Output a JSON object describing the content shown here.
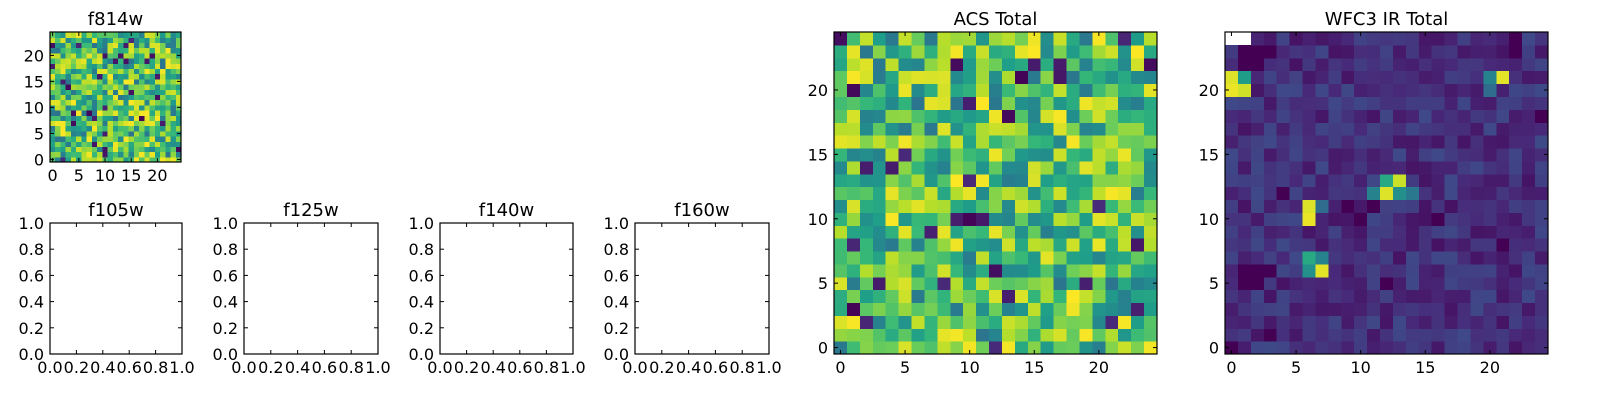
{
  "chart_data": [
    {
      "id": "f814w",
      "type": "heatmap",
      "title": "f814w",
      "grid_size": 25,
      "xlim": [
        -0.5,
        24.5
      ],
      "ylim": [
        -0.5,
        24.5
      ],
      "xticks": [
        0,
        5,
        10,
        15,
        20
      ],
      "yticks": [
        0,
        5,
        10,
        15,
        20
      ],
      "colormap": "viridis",
      "value_range": [
        0,
        1
      ],
      "seed": 814,
      "pattern": "noise"
    },
    {
      "id": "f105w",
      "type": "heatmap",
      "title": "f105w",
      "empty": true,
      "xlim": [
        0,
        1
      ],
      "ylim": [
        0,
        1
      ],
      "xticks": [
        "0.0",
        "0.2",
        "0.4",
        "0.6",
        "0.8",
        "1.0"
      ],
      "yticks": [
        "0.0",
        "0.2",
        "0.4",
        "0.6",
        "0.8",
        "1.0"
      ]
    },
    {
      "id": "f125w",
      "type": "heatmap",
      "title": "f125w",
      "empty": true,
      "xlim": [
        0,
        1
      ],
      "ylim": [
        0,
        1
      ],
      "xticks": [
        "0.0",
        "0.2",
        "0.4",
        "0.6",
        "0.8",
        "1.0"
      ],
      "yticks": [
        "0.0",
        "0.2",
        "0.4",
        "0.6",
        "0.8",
        "1.0"
      ]
    },
    {
      "id": "f140w",
      "type": "heatmap",
      "title": "f140w",
      "empty": true,
      "xlim": [
        0,
        1
      ],
      "ylim": [
        0,
        1
      ],
      "xticks": [
        "0.0",
        "0.2",
        "0.4",
        "0.6",
        "0.8",
        "1.0"
      ],
      "yticks": [
        "0.0",
        "0.2",
        "0.4",
        "0.6",
        "0.8",
        "1.0"
      ]
    },
    {
      "id": "f160w",
      "type": "heatmap",
      "title": "f160w",
      "empty": true,
      "xlim": [
        0,
        1
      ],
      "ylim": [
        0,
        1
      ],
      "xticks": [
        "0.0",
        "0.2",
        "0.4",
        "0.6",
        "0.8",
        "1.0"
      ],
      "yticks": [
        "0.0",
        "0.2",
        "0.4",
        "0.6",
        "0.8",
        "1.0"
      ]
    },
    {
      "id": "acs_total",
      "type": "heatmap",
      "title": "ACS Total",
      "grid_size": 25,
      "xlim": [
        -0.5,
        24.5
      ],
      "ylim": [
        -0.5,
        24.5
      ],
      "xticks": [
        0,
        5,
        10,
        15,
        20
      ],
      "yticks": [
        0,
        5,
        10,
        15,
        20
      ],
      "colormap": "viridis",
      "value_range": [
        0,
        1
      ],
      "seed": 2017,
      "pattern": "noise"
    },
    {
      "id": "wfc3_ir_total",
      "type": "heatmap",
      "title": "WFC3 IR Total",
      "grid_size": 25,
      "xlim": [
        -0.5,
        24.5
      ],
      "ylim": [
        -0.5,
        24.5
      ],
      "xticks": [
        0,
        5,
        10,
        15,
        20
      ],
      "yticks": [
        0,
        5,
        10,
        15,
        20
      ],
      "colormap": "viridis",
      "value_range": [
        0,
        1
      ],
      "seed": 160,
      "pattern": "faint",
      "masked_cells": [
        [
          0,
          24
        ],
        [
          1,
          24
        ]
      ],
      "hot_cells": [
        {
          "x": 0,
          "y": 21,
          "v": 0.95
        },
        {
          "x": 0,
          "y": 20,
          "v": 0.97
        },
        {
          "x": 1,
          "y": 20,
          "v": 0.93
        },
        {
          "x": 1,
          "y": 21,
          "v": 0.55
        },
        {
          "x": 21,
          "y": 21,
          "v": 0.96
        },
        {
          "x": 20,
          "y": 21,
          "v": 0.45
        },
        {
          "x": 20,
          "y": 20,
          "v": 0.35
        },
        {
          "x": 12,
          "y": 12,
          "v": 0.95
        },
        {
          "x": 13,
          "y": 13,
          "v": 0.92
        },
        {
          "x": 12,
          "y": 13,
          "v": 0.6
        },
        {
          "x": 11,
          "y": 12,
          "v": 0.45
        },
        {
          "x": 13,
          "y": 12,
          "v": 0.5
        },
        {
          "x": 14,
          "y": 12,
          "v": 0.4
        },
        {
          "x": 6,
          "y": 11,
          "v": 0.95
        },
        {
          "x": 6,
          "y": 10,
          "v": 0.97
        },
        {
          "x": 7,
          "y": 11,
          "v": 0.35
        },
        {
          "x": 6,
          "y": 7,
          "v": 0.6
        },
        {
          "x": 7,
          "y": 6,
          "v": 0.96
        },
        {
          "x": 6,
          "y": 6,
          "v": 0.5
        },
        {
          "x": 7,
          "y": 7,
          "v": 0.45
        }
      ],
      "dark_cells": [
        [
          1,
          23
        ],
        [
          2,
          23
        ],
        [
          3,
          23
        ],
        [
          1,
          22
        ],
        [
          2,
          22
        ],
        [
          22,
          23
        ],
        [
          22,
          24
        ],
        [
          11,
          11
        ],
        [
          10,
          10
        ],
        [
          9,
          11
        ],
        [
          1,
          5
        ],
        [
          2,
          5
        ],
        [
          1,
          6
        ],
        [
          2,
          6
        ],
        [
          3,
          6
        ],
        [
          0,
          0
        ],
        [
          3,
          1
        ],
        [
          24,
          18
        ],
        [
          16,
          10
        ],
        [
          21,
          8
        ],
        [
          4,
          12
        ],
        [
          12,
          5
        ]
      ]
    }
  ]
}
